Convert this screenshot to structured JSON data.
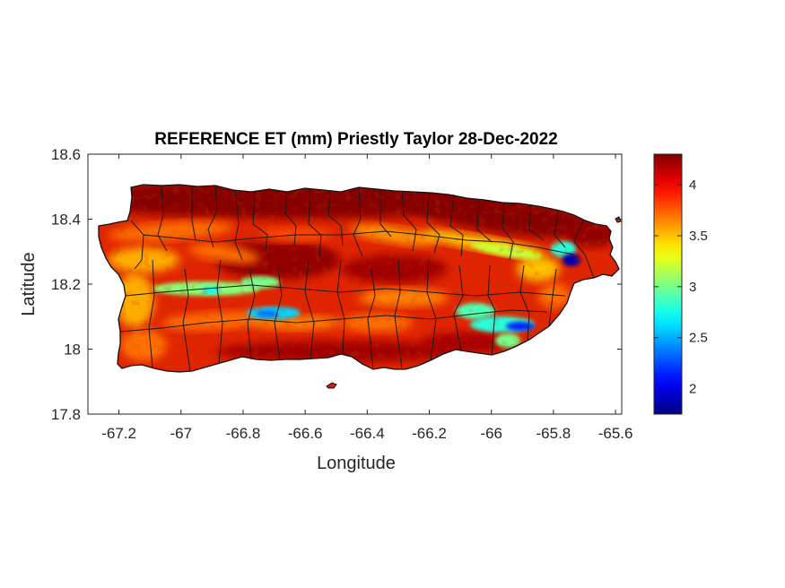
{
  "chart_data": {
    "type": "heatmap",
    "title": "REFERENCE ET (mm) Priestly Taylor 28-Dec-2022",
    "xlabel": "Longitude",
    "ylabel": "Latitude",
    "xlim": [
      -67.3,
      -65.58
    ],
    "ylim": [
      17.8,
      18.6
    ],
    "xticks": [
      -67.2,
      -67,
      -66.8,
      -66.6,
      -66.4,
      -66.2,
      -66,
      -65.8,
      -65.6
    ],
    "xtick_labels": [
      "-67.2",
      "-67",
      "-66.8",
      "-66.6",
      "-66.4",
      "-66.2",
      "-66",
      "-65.8",
      "-65.6"
    ],
    "yticks": [
      17.8,
      18,
      18.2,
      18.4,
      18.6
    ],
    "ytick_labels": [
      "17.8",
      "18",
      "18.2",
      "18.4",
      "18.6"
    ],
    "colormap": "jet",
    "colorbar": {
      "range": [
        1.75,
        4.3
      ],
      "ticks": [
        2,
        2.5,
        3,
        3.5,
        4
      ],
      "tick_labels": [
        "2",
        "2.5",
        "3",
        "3.5",
        "4"
      ],
      "placement": "right"
    },
    "field_summary": {
      "background_mm": 4.1,
      "north_coast_mm": 4.25,
      "low_zones": [
        {
          "area": "north-east band near -65.77, 18.29",
          "value_mm": 1.85
        },
        {
          "area": "south-east valley near -65.97, 18.06",
          "value_mm": 2.2
        },
        {
          "area": "south-central band near -66.72, 18.10",
          "value_mm": 2.6
        },
        {
          "area": "south-west band near -67.0, 18.17",
          "value_mm": 3.0
        },
        {
          "area": "central belt -66.3 to -65.85, 18.3",
          "value_mm": 3.4
        }
      ]
    },
    "grid": false,
    "boundaries": "municipality outlines"
  }
}
